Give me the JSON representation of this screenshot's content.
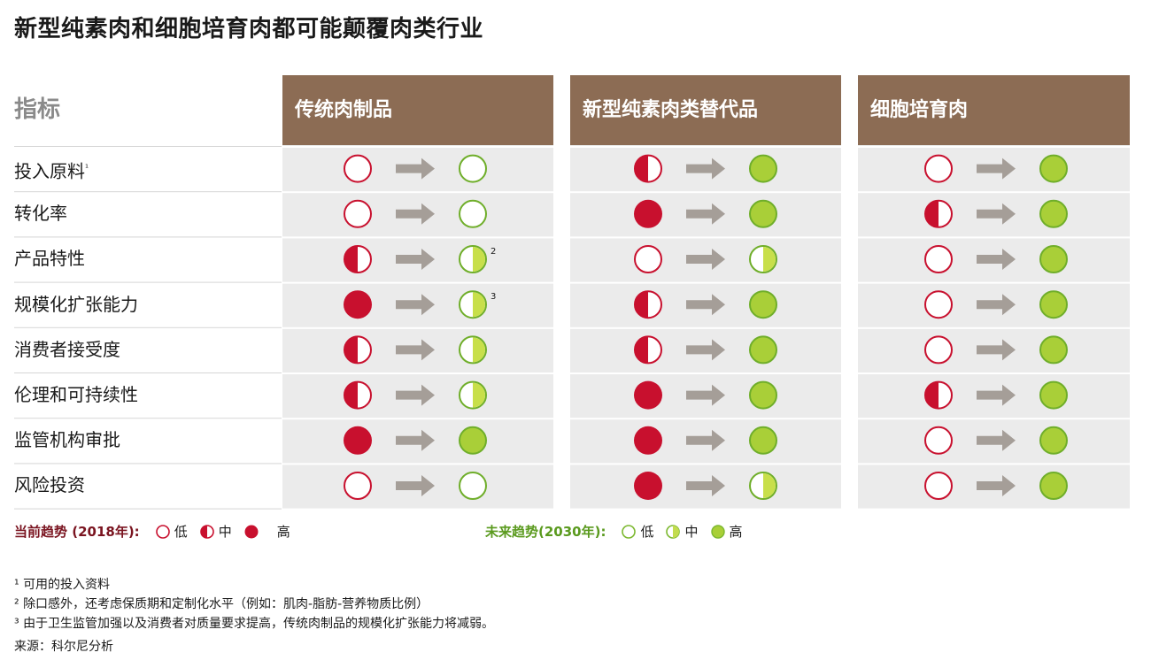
{
  "title": "新型纯素肉和细胞培育肉都可能颠覆肉类行业",
  "colors": {
    "header": "#8c6c54",
    "red": "#c8102e",
    "green": "#a9cf38",
    "arrow": "#a59e98",
    "panel": "#ebebeb"
  },
  "chart_data": {
    "type": "table",
    "metric_header": "指标",
    "columns": [
      "传统肉制品",
      "新型纯素肉类替代品",
      "细胞培育肉"
    ],
    "rows": [
      {
        "label": "投入原料",
        "sup": "¹",
        "values": [
          [
            "low",
            "low"
          ],
          [
            "mid",
            "high"
          ],
          [
            "low",
            "high"
          ]
        ]
      },
      {
        "label": "转化率",
        "sup": "",
        "values": [
          [
            "low",
            "low"
          ],
          [
            "high",
            "high"
          ],
          [
            "mid",
            "high"
          ]
        ]
      },
      {
        "label": "产品特性",
        "sup": "",
        "values": [
          [
            "mid",
            "mid"
          ],
          [
            "low",
            "mid"
          ],
          [
            "low",
            "high"
          ]
        ]
      },
      {
        "label": "规模化扩张能力",
        "sup": "",
        "values": [
          [
            "high",
            "mid"
          ],
          [
            "mid",
            "high"
          ],
          [
            "low",
            "high"
          ]
        ]
      },
      {
        "label": "消费者接受度",
        "sup": "",
        "values": [
          [
            "mid",
            "mid"
          ],
          [
            "mid",
            "high"
          ],
          [
            "low",
            "high"
          ]
        ]
      },
      {
        "label": "伦理和可持续性",
        "sup": "",
        "values": [
          [
            "mid",
            "mid"
          ],
          [
            "high",
            "high"
          ],
          [
            "mid",
            "high"
          ]
        ]
      },
      {
        "label": "监管机构审批",
        "sup": "",
        "values": [
          [
            "high",
            "high"
          ],
          [
            "high",
            "high"
          ],
          [
            "low",
            "high"
          ]
        ]
      },
      {
        "label": "风险投资",
        "sup": "",
        "values": [
          [
            "low",
            "low"
          ],
          [
            "high",
            "mid"
          ],
          [
            "low",
            "high"
          ]
        ]
      }
    ],
    "mark_notes": [
      {
        "row": 2,
        "col": 0,
        "text": "2"
      },
      {
        "row": 3,
        "col": 0,
        "text": "3"
      }
    ],
    "legend_current": {
      "title": "当前趋势 (2018年):",
      "low": "低",
      "mid": "中",
      "high": "高"
    },
    "legend_future": {
      "title": "未来趋势(2030年):",
      "low": "低",
      "mid": "中",
      "high": "高"
    }
  },
  "footnotes": [
    "¹ 可用的投入资料",
    "² 除口感外，还考虑保质期和定制化水平（例如：肌肉-脂肪-营养物质比例）",
    "³ 由于卫生监管加强以及消费者对质量要求提高，传统肉制品的规模化扩张能力将减弱。"
  ],
  "source": "来源：科尔尼分析"
}
